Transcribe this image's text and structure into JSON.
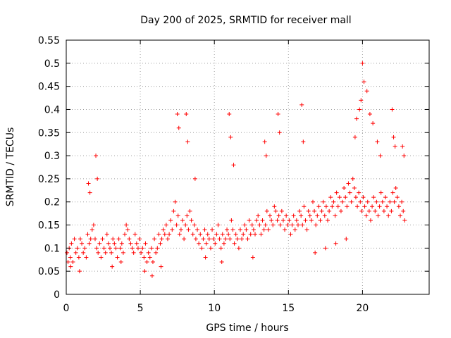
{
  "chart_data": {
    "type": "scatter",
    "title": "Day 200 of 2025, SRMTID for receiver mall",
    "xlabel": "GPS time / hours",
    "ylabel": "SRMTID / TECUs",
    "xlim": [
      0,
      24.5
    ],
    "ylim": [
      0,
      0.55
    ],
    "xticks": [
      0,
      5,
      10,
      15,
      20
    ],
    "xtick_labels": [
      "0",
      "5",
      "10",
      "15",
      "20"
    ],
    "yticks": [
      0,
      0.05,
      0.1,
      0.15,
      0.2,
      0.25,
      0.3,
      0.35,
      0.4,
      0.45,
      0.5,
      0.55
    ],
    "ytick_labels": [
      "0",
      "0.05",
      "0.1",
      "0.15",
      "0.2",
      "0.25",
      "0.3",
      "0.35",
      "0.4",
      "0.45",
      "0.5",
      "0.55"
    ],
    "grid": true,
    "marker": "+",
    "color": "#ff0000",
    "series": [
      {
        "name": "SRMTID",
        "x": [
          0.05,
          0.12,
          0.2,
          0.28,
          0.35,
          0.45,
          0.55,
          0.65,
          0.75,
          0.85,
          0.95,
          1.05,
          1.15,
          1.25,
          1.35,
          1.45,
          1.55,
          1.65,
          1.75,
          1.85,
          1.95,
          2.05,
          2.15,
          2.25,
          2.35,
          2.45,
          2.55,
          2.65,
          2.75,
          2.85,
          2.95,
          3.05,
          3.15,
          3.25,
          3.35,
          3.45,
          3.55,
          3.65,
          3.75,
          3.85,
          3.95,
          4.05,
          4.15,
          4.25,
          4.35,
          4.45,
          4.55,
          4.65,
          4.75,
          4.85,
          4.95,
          5.05,
          5.15,
          5.25,
          5.35,
          5.45,
          5.55,
          5.65,
          5.75,
          5.85,
          5.95,
          6.05,
          6.15,
          6.25,
          6.35,
          6.45,
          6.55,
          6.65,
          6.75,
          6.85,
          6.95,
          7.05,
          7.15,
          7.25,
          7.35,
          7.45,
          7.55,
          7.65,
          7.75,
          7.85,
          7.95,
          8.05,
          8.15,
          8.25,
          8.35,
          8.45,
          8.55,
          8.65,
          8.75,
          8.85,
          8.95,
          9.05,
          9.15,
          9.25,
          9.35,
          9.45,
          9.55,
          9.65,
          9.75,
          9.85,
          9.95,
          10.05,
          10.15,
          10.25,
          10.35,
          10.45,
          10.55,
          10.65,
          10.75,
          10.85,
          10.95,
          11.05,
          11.15,
          11.25,
          11.35,
          11.45,
          11.55,
          11.65,
          11.75,
          11.85,
          11.95,
          12.05,
          12.15,
          12.25,
          12.35,
          12.45,
          12.55,
          12.65,
          12.75,
          12.85,
          12.95,
          13.05,
          13.15,
          13.25,
          13.35,
          13.45,
          13.55,
          13.65,
          13.75,
          13.85,
          13.95,
          14.05,
          14.15,
          14.25,
          14.35,
          14.45,
          14.55,
          14.65,
          14.75,
          14.85,
          14.95,
          15.05,
          15.15,
          15.25,
          15.35,
          15.45,
          15.55,
          15.65,
          15.75,
          15.85,
          15.95,
          16.05,
          16.15,
          16.25,
          16.35,
          16.45,
          16.55,
          16.65,
          16.75,
          16.85,
          16.95,
          17.05,
          17.15,
          17.25,
          17.35,
          17.45,
          17.55,
          17.65,
          17.75,
          17.85,
          17.95,
          18.05,
          18.15,
          18.25,
          18.35,
          18.45,
          18.55,
          18.65,
          18.75,
          18.85,
          18.95,
          19.05,
          19.15,
          19.25,
          19.35,
          19.45,
          19.55,
          19.65,
          19.75,
          19.85,
          19.95,
          20.05,
          20.15,
          20.25,
          20.35,
          20.45,
          20.55,
          20.65,
          20.75,
          20.85,
          20.95,
          21.05,
          21.15,
          21.25,
          21.35,
          21.45,
          21.55,
          21.65,
          21.75,
          21.85,
          21.95,
          22.05,
          22.15,
          22.25,
          22.35,
          22.45,
          22.55,
          22.65,
          22.75,
          22.85,
          1.5,
          1.6,
          2.0,
          2.1,
          7.5,
          7.6,
          8.1,
          8.2,
          8.7,
          11.0,
          11.1,
          11.3,
          13.4,
          13.5,
          14.3,
          14.4,
          15.9,
          16.0,
          19.5,
          19.6,
          19.8,
          19.9,
          20.0,
          20.1,
          20.3,
          20.5,
          20.7,
          21.0,
          21.2,
          22.0,
          22.1,
          22.2,
          22.7,
          22.8,
          0.3,
          0.9,
          3.1,
          3.7,
          5.3,
          5.8,
          6.4,
          9.4,
          10.5,
          12.6,
          16.8,
          17.5,
          18.2,
          18.9
        ],
        "y": [
          0.09,
          0.07,
          0.1,
          0.08,
          0.11,
          0.07,
          0.12,
          0.09,
          0.1,
          0.08,
          0.12,
          0.11,
          0.09,
          0.1,
          0.08,
          0.13,
          0.11,
          0.12,
          0.14,
          0.15,
          0.12,
          0.1,
          0.09,
          0.11,
          0.08,
          0.12,
          0.1,
          0.09,
          0.13,
          0.11,
          0.1,
          0.09,
          0.12,
          0.11,
          0.1,
          0.08,
          0.12,
          0.1,
          0.11,
          0.09,
          0.13,
          0.15,
          0.14,
          0.12,
          0.11,
          0.1,
          0.09,
          0.13,
          0.11,
          0.1,
          0.12,
          0.09,
          0.1,
          0.08,
          0.11,
          0.07,
          0.09,
          0.08,
          0.1,
          0.07,
          0.12,
          0.09,
          0.1,
          0.13,
          0.11,
          0.12,
          0.14,
          0.13,
          0.15,
          0.12,
          0.13,
          0.16,
          0.14,
          0.18,
          0.2,
          0.15,
          0.17,
          0.13,
          0.14,
          0.16,
          0.12,
          0.15,
          0.17,
          0.14,
          0.18,
          0.16,
          0.13,
          0.15,
          0.12,
          0.14,
          0.11,
          0.13,
          0.1,
          0.12,
          0.14,
          0.11,
          0.13,
          0.12,
          0.1,
          0.14,
          0.12,
          0.11,
          0.13,
          0.15,
          0.12,
          0.1,
          0.13,
          0.11,
          0.12,
          0.14,
          0.13,
          0.12,
          0.16,
          0.14,
          0.11,
          0.13,
          0.12,
          0.1,
          0.14,
          0.12,
          0.13,
          0.15,
          0.14,
          0.12,
          0.16,
          0.13,
          0.15,
          0.14,
          0.13,
          0.16,
          0.17,
          0.15,
          0.13,
          0.16,
          0.14,
          0.15,
          0.18,
          0.14,
          0.17,
          0.16,
          0.15,
          0.19,
          0.18,
          0.16,
          0.17,
          0.15,
          0.18,
          0.16,
          0.14,
          0.17,
          0.15,
          0.16,
          0.13,
          0.15,
          0.17,
          0.14,
          0.16,
          0.15,
          0.18,
          0.17,
          0.15,
          0.19,
          0.16,
          0.14,
          0.18,
          0.17,
          0.16,
          0.2,
          0.18,
          0.15,
          0.17,
          0.19,
          0.16,
          0.18,
          0.2,
          0.17,
          0.19,
          0.16,
          0.18,
          0.21,
          0.19,
          0.2,
          0.17,
          0.22,
          0.19,
          0.21,
          0.18,
          0.2,
          0.23,
          0.21,
          0.19,
          0.24,
          0.22,
          0.2,
          0.25,
          0.23,
          0.21,
          0.19,
          0.22,
          0.2,
          0.18,
          0.21,
          0.19,
          0.17,
          0.2,
          0.18,
          0.16,
          0.19,
          0.21,
          0.18,
          0.2,
          0.17,
          0.19,
          0.22,
          0.2,
          0.18,
          0.21,
          0.19,
          0.17,
          0.2,
          0.18,
          0.22,
          0.2,
          0.23,
          0.21,
          0.19,
          0.17,
          0.2,
          0.18,
          0.16,
          0.24,
          0.22,
          0.3,
          0.25,
          0.39,
          0.36,
          0.39,
          0.33,
          0.25,
          0.39,
          0.34,
          0.28,
          0.33,
          0.3,
          0.39,
          0.35,
          0.41,
          0.33,
          0.34,
          0.38,
          0.4,
          0.42,
          0.5,
          0.46,
          0.44,
          0.39,
          0.37,
          0.33,
          0.3,
          0.4,
          0.34,
          0.32,
          0.32,
          0.3,
          0.06,
          0.05,
          0.06,
          0.07,
          0.05,
          0.04,
          0.06,
          0.08,
          0.07,
          0.08,
          0.09,
          0.1,
          0.11,
          0.12
        ]
      }
    ]
  }
}
